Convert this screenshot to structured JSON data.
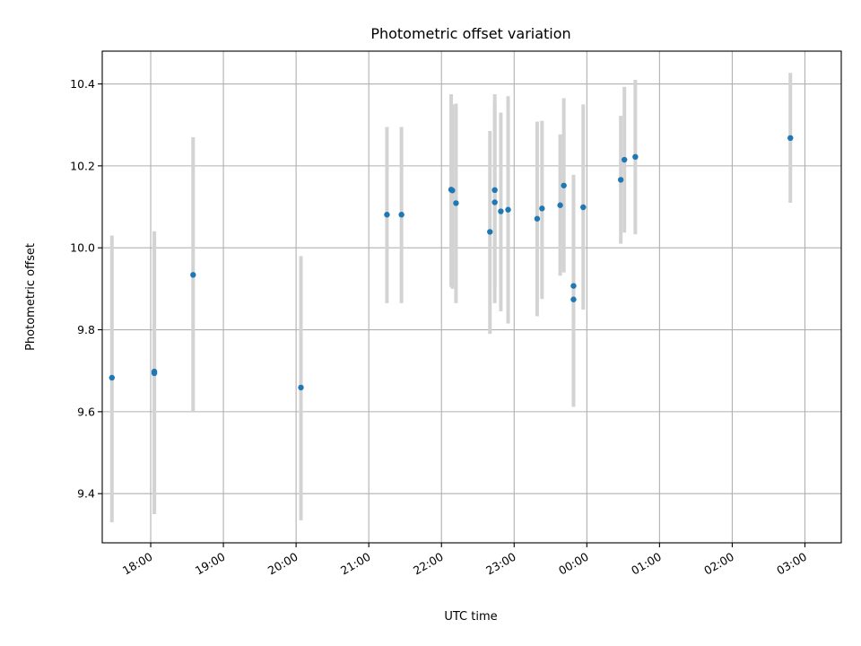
{
  "chart_data": {
    "type": "scatter",
    "title": "Photometric offset variation",
    "xlabel": "UTC time",
    "ylabel": "Photometric offset",
    "grid": true,
    "xlim": [
      "17:20",
      "03:30"
    ],
    "ylim": [
      9.28,
      10.48
    ],
    "x_ticks": [
      "18:00",
      "19:00",
      "20:00",
      "21:00",
      "22:00",
      "23:00",
      "00:00",
      "01:00",
      "02:00",
      "03:00"
    ],
    "y_ticks": [
      "9.4",
      "9.6",
      "9.8",
      "10.0",
      "10.2",
      "10.4"
    ],
    "colors": {
      "point": "#1f77b4",
      "error_bar": "#d3d3d3",
      "grid": "#b0b0b0"
    },
    "points": [
      {
        "x": "17:28",
        "y": 9.683,
        "yerr_low": 9.33,
        "yerr_high": 10.03
      },
      {
        "x": "18:03",
        "y": 9.694,
        "yerr_low": 9.35,
        "yerr_high": 10.04
      },
      {
        "x": "18:03",
        "y": 9.698,
        "yerr_low": 9.35,
        "yerr_high": 10.04
      },
      {
        "x": "18:35",
        "y": 9.934,
        "yerr_low": 9.6,
        "yerr_high": 10.27
      },
      {
        "x": "20:04",
        "y": 9.659,
        "yerr_low": 9.335,
        "yerr_high": 9.98
      },
      {
        "x": "21:15",
        "y": 10.081,
        "yerr_low": 9.865,
        "yerr_high": 10.295
      },
      {
        "x": "21:27",
        "y": 10.081,
        "yerr_low": 9.865,
        "yerr_high": 10.295
      },
      {
        "x": "22:08",
        "y": 10.142,
        "yerr_low": 9.905,
        "yerr_high": 10.375
      },
      {
        "x": "22:09",
        "y": 10.14,
        "yerr_low": 9.9,
        "yerr_high": 10.35
      },
      {
        "x": "22:12",
        "y": 10.109,
        "yerr_low": 9.865,
        "yerr_high": 10.352
      },
      {
        "x": "22:40",
        "y": 10.039,
        "yerr_low": 9.79,
        "yerr_high": 10.285
      },
      {
        "x": "22:44",
        "y": 10.141,
        "yerr_low": 9.905,
        "yerr_high": 10.375
      },
      {
        "x": "22:44",
        "y": 10.111,
        "yerr_low": 9.865,
        "yerr_high": 10.352
      },
      {
        "x": "22:49",
        "y": 10.089,
        "yerr_low": 9.845,
        "yerr_high": 10.33
      },
      {
        "x": "22:55",
        "y": 10.093,
        "yerr_low": 9.815,
        "yerr_high": 10.37
      },
      {
        "x": "23:19",
        "y": 10.071,
        "yerr_low": 9.833,
        "yerr_high": 10.308
      },
      {
        "x": "23:23",
        "y": 10.096,
        "yerr_low": 9.875,
        "yerr_high": 10.31
      },
      {
        "x": "23:38",
        "y": 10.104,
        "yerr_low": 9.932,
        "yerr_high": 10.277
      },
      {
        "x": "23:41",
        "y": 10.152,
        "yerr_low": 9.94,
        "yerr_high": 10.365
      },
      {
        "x": "23:49",
        "y": 9.907,
        "yerr_low": 9.612,
        "yerr_high": 10.178
      },
      {
        "x": "23:49",
        "y": 9.874,
        "yerr_low": 9.612,
        "yerr_high": 10.178
      },
      {
        "x": "23:57",
        "y": 10.099,
        "yerr_low": 9.849,
        "yerr_high": 10.35
      },
      {
        "x": "00:28",
        "y": 10.166,
        "yerr_low": 10.01,
        "yerr_high": 10.322
      },
      {
        "x": "00:31",
        "y": 10.215,
        "yerr_low": 10.037,
        "yerr_high": 10.393
      },
      {
        "x": "00:40",
        "y": 10.222,
        "yerr_low": 10.033,
        "yerr_high": 10.41
      },
      {
        "x": "02:48",
        "y": 10.268,
        "yerr_low": 10.11,
        "yerr_high": 10.427
      }
    ]
  }
}
